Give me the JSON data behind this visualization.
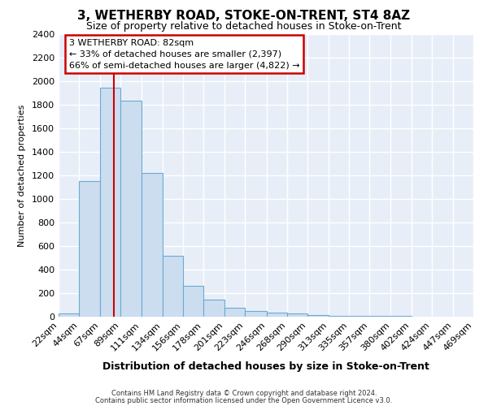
{
  "title": "3, WETHERBY ROAD, STOKE-ON-TRENT, ST4 8AZ",
  "subtitle": "Size of property relative to detached houses in Stoke-on-Trent",
  "xlabel": "Distribution of detached houses by size in Stoke-on-Trent",
  "ylabel": "Number of detached properties",
  "bin_edges": [
    22,
    44,
    67,
    89,
    111,
    134,
    156,
    178,
    201,
    223,
    246,
    268,
    290,
    313,
    335,
    357,
    380,
    402,
    424,
    447,
    469
  ],
  "bar_heights": [
    30,
    1150,
    1950,
    1840,
    1220,
    520,
    260,
    145,
    75,
    50,
    35,
    30,
    15,
    10,
    5,
    5,
    5,
    3,
    3,
    2
  ],
  "bar_color": "#ccddf0",
  "bar_edgecolor": "#6aaad4",
  "vline_x": 82,
  "vline_color": "#cc0000",
  "ylim": [
    0,
    2400
  ],
  "yticks": [
    0,
    200,
    400,
    600,
    800,
    1000,
    1200,
    1400,
    1600,
    1800,
    2000,
    2200,
    2400
  ],
  "annotation_title": "3 WETHERBY ROAD: 82sqm",
  "annotation_line1": "← 33% of detached houses are smaller (2,397)",
  "annotation_line2": "66% of semi-detached houses are larger (4,822) →",
  "annotation_box_facecolor": "#ffffff",
  "annotation_box_edgecolor": "#cc0000",
  "footer1": "Contains HM Land Registry data © Crown copyright and database right 2024.",
  "footer2": "Contains public sector information licensed under the Open Government Licence v3.0.",
  "figure_facecolor": "#ffffff",
  "plot_facecolor": "#e8eef8",
  "grid_color": "#ffffff",
  "tick_labels": [
    "22sqm",
    "44sqm",
    "67sqm",
    "89sqm",
    "111sqm",
    "134sqm",
    "156sqm",
    "178sqm",
    "201sqm",
    "223sqm",
    "246sqm",
    "268sqm",
    "290sqm",
    "313sqm",
    "335sqm",
    "357sqm",
    "380sqm",
    "402sqm",
    "424sqm",
    "447sqm",
    "469sqm"
  ]
}
